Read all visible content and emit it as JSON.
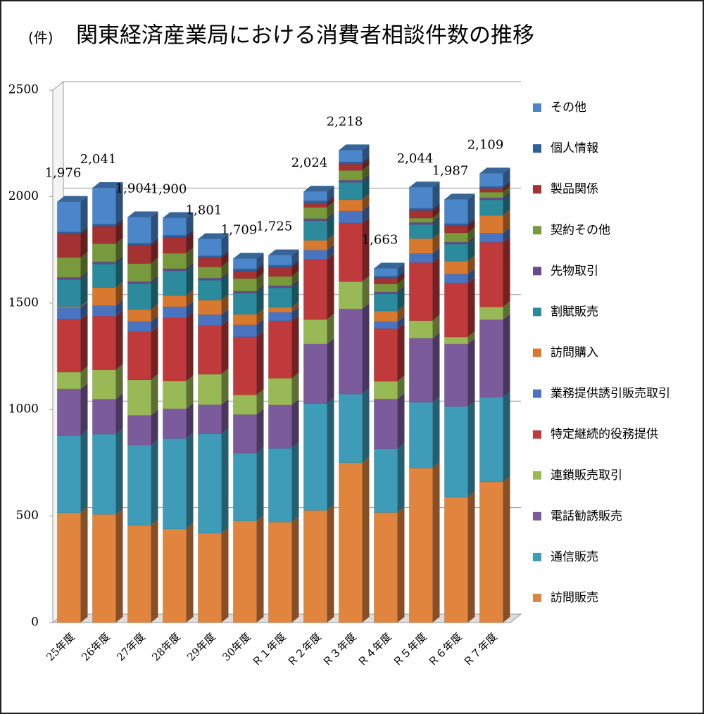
{
  "chart_data": {
    "type": "bar3d_stacked",
    "unit": "(件)",
    "title": "関東経済産業局における消費者相談件数の推移",
    "categories": [
      "25年度",
      "26年度",
      "27年度",
      "28年度",
      "29年度",
      "30年度",
      "Ｒ１年度",
      "Ｒ２年度",
      "Ｒ３年度",
      "Ｒ４年度",
      "Ｒ５年度",
      "Ｒ６年度",
      "Ｒ７年度"
    ],
    "ylim": [
      0,
      2500
    ],
    "yticks": [
      0,
      500,
      1000,
      1500,
      2000,
      2500
    ],
    "grid": true,
    "legend": "right",
    "totals": [
      1976,
      2041,
      1904,
      1900,
      1801,
      1709,
      1725,
      2024,
      2218,
      1663,
      2044,
      1987,
      2109
    ],
    "value_labels": [
      "1,976",
      "2,041",
      "1,904",
      "1,900",
      "1,801",
      "1,709",
      "1,725",
      "2,024",
      "2,218",
      "1,663",
      "2,044",
      "1,987",
      "2,109"
    ],
    "series": [
      {
        "name": "訪問販売",
        "color": "#e0843e",
        "values": [
          516,
          508,
          457,
          440,
          420,
          477,
          472,
          527,
          751,
          517,
          726,
          589,
          661
        ]
      },
      {
        "name": "通信販売",
        "color": "#3e9cb8",
        "values": [
          361,
          377,
          376,
          424,
          466,
          319,
          346,
          501,
          322,
          300,
          308,
          426,
          397
        ]
      },
      {
        "name": "電話勧誘販売",
        "color": "#7b5b9c",
        "values": [
          220,
          164,
          140,
          140,
          137,
          181,
          204,
          280,
          400,
          233,
          301,
          293,
          364
        ]
      },
      {
        "name": "連鎖販売取引",
        "color": "#98b955",
        "values": [
          79,
          138,
          167,
          130,
          143,
          92,
          125,
          115,
          128,
          83,
          83,
          33,
          60
        ]
      },
      {
        "name": "特定継続的役務提供",
        "color": "#c0393b",
        "values": [
          248,
          252,
          225,
          297,
          228,
          273,
          270,
          283,
          276,
          247,
          272,
          253,
          304
        ]
      },
      {
        "name": "業務提供誘引販売取引",
        "color": "#4a74c0",
        "values": [
          55,
          49,
          49,
          52,
          52,
          56,
          40,
          43,
          56,
          33,
          43,
          43,
          43
        ]
      },
      {
        "name": "訪問購入",
        "color": "#d9792f",
        "values": [
          5,
          85,
          56,
          52,
          68,
          49,
          23,
          46,
          52,
          50,
          70,
          60,
          83
        ]
      },
      {
        "name": "割賦販売",
        "color": "#2b8a9c",
        "values": [
          127,
          111,
          121,
          117,
          94,
          99,
          92,
          92,
          82,
          80,
          66,
          80,
          73
        ]
      },
      {
        "name": "先物取引",
        "color": "#654a8e",
        "values": [
          10,
          10,
          10,
          10,
          10,
          10,
          10,
          10,
          10,
          10,
          10,
          10,
          10
        ]
      },
      {
        "name": "契約その他",
        "color": "#789a3c",
        "values": [
          93,
          85,
          85,
          72,
          52,
          59,
          43,
          53,
          46,
          37,
          20,
          43,
          26
        ]
      },
      {
        "name": "製品関係",
        "color": "#a53232",
        "values": [
          110,
          82,
          85,
          75,
          42,
          36,
          43,
          20,
          30,
          27,
          36,
          33,
          17
        ]
      },
      {
        "name": "個人情報",
        "color": "#2f5f9c",
        "values": [
          10,
          10,
          10,
          10,
          10,
          10,
          10,
          10,
          10,
          10,
          10,
          10,
          10
        ]
      },
      {
        "name": "その他",
        "color": "#4a86c9",
        "values": [
          142,
          170,
          123,
          81,
          79,
          48,
          47,
          44,
          55,
          36,
          99,
          114,
          61
        ]
      }
    ]
  }
}
